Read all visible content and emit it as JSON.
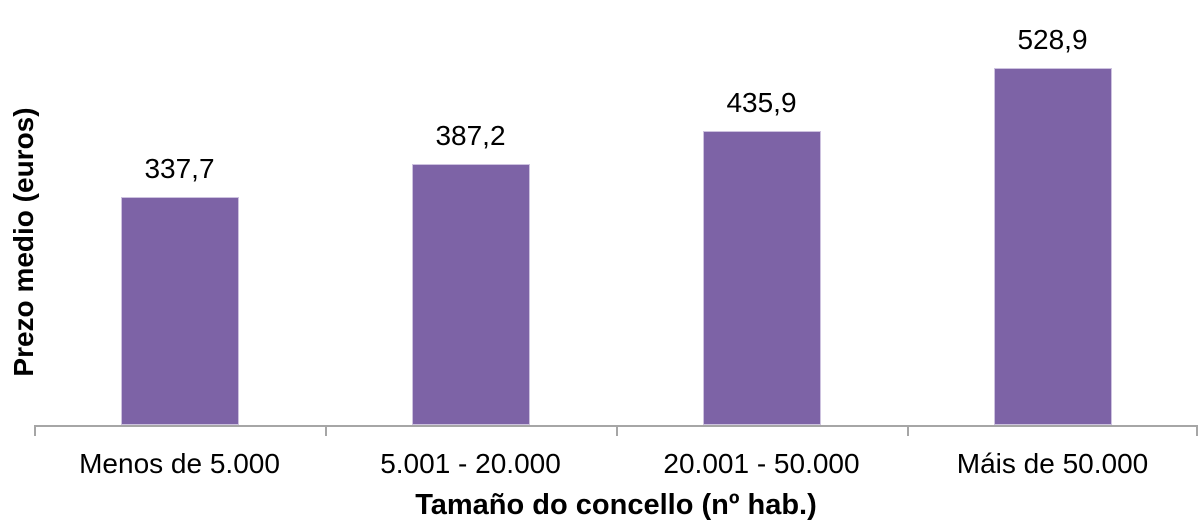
{
  "chart_data": {
    "type": "bar",
    "title": "",
    "categories": [
      "Menos de 5.000",
      "5.001 - 20.000",
      "20.001 - 50.000",
      "Máis de 50.000"
    ],
    "values": [
      337.7,
      387.2,
      435.9,
      528.9
    ],
    "value_labels": [
      "337,7",
      "387,2",
      "435,9",
      "528,9"
    ],
    "xlabel": "Tamaño do concello (nº hab.)",
    "ylabel": "Prezo medio (euros)",
    "ylim": [
      0,
      630
    ],
    "grid": false,
    "legend": false,
    "colors": {
      "bar_fill": "#7D63A6",
      "bar_border": "#CDC2DF",
      "axis_line": "#A6A6A6",
      "text": "#000000",
      "background": "#FFFFFF"
    }
  }
}
